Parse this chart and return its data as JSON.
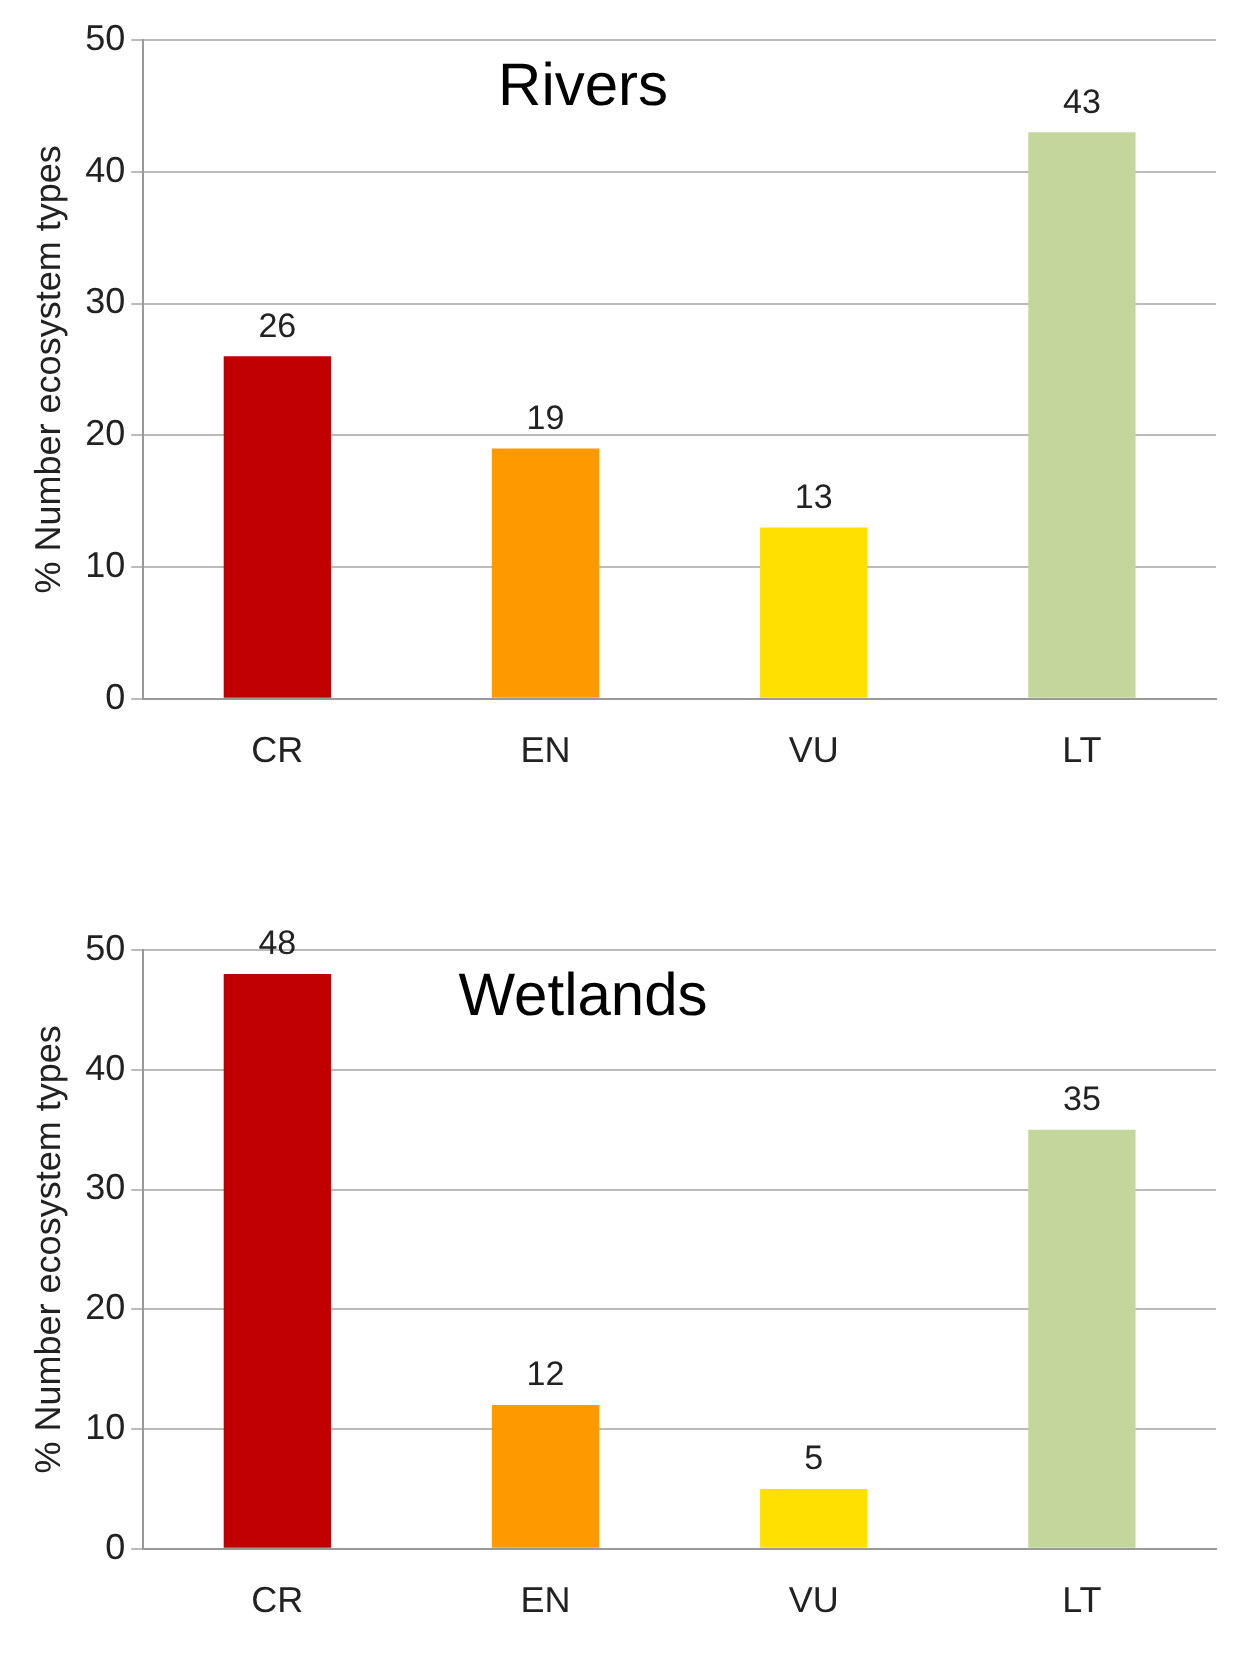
{
  "chart_data": [
    {
      "type": "bar",
      "title": "Rivers",
      "ylabel": "% Number ecosystem types",
      "categories": [
        "CR",
        "EN",
        "VU",
        "LT"
      ],
      "values": [
        26,
        19,
        13,
        43
      ],
      "colors": [
        "#c00000",
        "#ff9900",
        "#ffe000",
        "#c3d69b"
      ],
      "ylim": [
        0,
        50
      ],
      "yticks": [
        0,
        10,
        20,
        30,
        40,
        50
      ],
      "grid": "y",
      "data_labels": true
    },
    {
      "type": "bar",
      "title": "Wetlands",
      "ylabel": "% Number ecosystem types",
      "categories": [
        "CR",
        "EN",
        "VU",
        "LT"
      ],
      "values": [
        48,
        12,
        5,
        35
      ],
      "colors": [
        "#c00000",
        "#ff9900",
        "#ffe000",
        "#c3d69b"
      ],
      "ylim": [
        0,
        50
      ],
      "yticks": [
        0,
        10,
        20,
        30,
        40,
        50
      ],
      "grid": "y",
      "data_labels": true
    }
  ]
}
